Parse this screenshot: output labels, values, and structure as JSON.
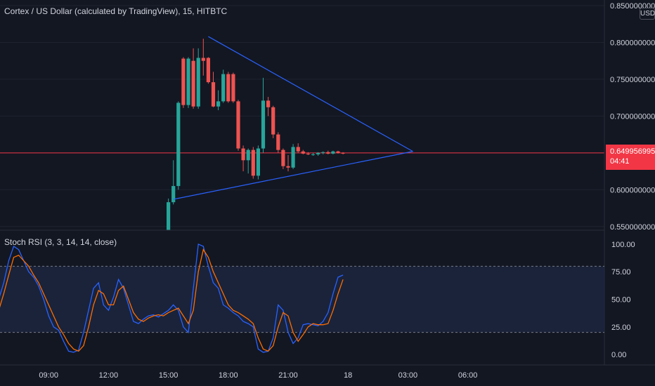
{
  "header": {
    "symbol_title": "Cortex / US Dollar (calculated by TradingView), 15, HITBTC",
    "currency_badge": "USD"
  },
  "price_tag": {
    "price": "0.649956995",
    "countdown": "04:41"
  },
  "colors": {
    "background": "#131722",
    "bull": "#26a69a",
    "bear": "#ef5350",
    "trendline": "#2962ff",
    "k_line": "#2962ff",
    "d_line": "#ff6d00",
    "price_line": "#f23645",
    "band_fill": "#1e2a44"
  },
  "chart_data": [
    {
      "type": "candlestick",
      "title": "Cortex / US Dollar (calculated by TradingView), 15, HITBTC",
      "ylim": [
        0.545,
        0.85
      ],
      "y_ticks": [
        "0.850000000",
        "0.800000000",
        "0.750000000",
        "0.700000000",
        "0.650000000",
        "0.600000000",
        "0.550000000"
      ],
      "y_tick_values": [
        0.85,
        0.8,
        0.75,
        0.7,
        0.65,
        0.6,
        0.55
      ],
      "x_ticks": [
        "06:00",
        "09:00",
        "12:00",
        "15:00",
        "18:00",
        "21:00",
        "18",
        "03:00",
        "06:00"
      ],
      "x_tick_index": [
        -120,
        -108,
        -96,
        -84,
        -72,
        -60,
        -48,
        -36,
        -24
      ],
      "candles": [
        {
          "i": -84,
          "o": 0.545,
          "h": 0.588,
          "l": 0.545,
          "c": 0.583
        },
        {
          "i": -83,
          "o": 0.583,
          "h": 0.64,
          "l": 0.58,
          "c": 0.605
        },
        {
          "i": -82,
          "o": 0.605,
          "h": 0.72,
          "l": 0.6,
          "c": 0.718
        },
        {
          "i": -81,
          "o": 0.778,
          "h": 0.78,
          "l": 0.711,
          "c": 0.715
        },
        {
          "i": -80,
          "o": 0.715,
          "h": 0.78,
          "l": 0.711,
          "c": 0.778
        },
        {
          "i": -79,
          "o": 0.775,
          "h": 0.792,
          "l": 0.71,
          "c": 0.713
        },
        {
          "i": -78,
          "o": 0.713,
          "h": 0.792,
          "l": 0.71,
          "c": 0.779
        },
        {
          "i": -77,
          "o": 0.779,
          "h": 0.805,
          "l": 0.755,
          "c": 0.775
        },
        {
          "i": -76,
          "o": 0.779,
          "h": 0.78,
          "l": 0.744,
          "c": 0.746
        },
        {
          "i": -75,
          "o": 0.746,
          "h": 0.76,
          "l": 0.712,
          "c": 0.713
        },
        {
          "i": -74,
          "o": 0.713,
          "h": 0.735,
          "l": 0.708,
          "c": 0.72
        },
        {
          "i": -73,
          "o": 0.72,
          "h": 0.763,
          "l": 0.718,
          "c": 0.757
        },
        {
          "i": -72,
          "o": 0.757,
          "h": 0.76,
          "l": 0.718,
          "c": 0.72
        },
        {
          "i": -71,
          "o": 0.757,
          "h": 0.759,
          "l": 0.718,
          "c": 0.72
        },
        {
          "i": -70,
          "o": 0.72,
          "h": 0.722,
          "l": 0.653,
          "c": 0.656
        },
        {
          "i": -69,
          "o": 0.656,
          "h": 0.66,
          "l": 0.625,
          "c": 0.64
        },
        {
          "i": -68,
          "o": 0.64,
          "h": 0.656,
          "l": 0.622,
          "c": 0.654
        },
        {
          "i": -67,
          "o": 0.654,
          "h": 0.658,
          "l": 0.615,
          "c": 0.619
        },
        {
          "i": -66,
          "o": 0.619,
          "h": 0.66,
          "l": 0.614,
          "c": 0.656
        },
        {
          "i": -65,
          "o": 0.656,
          "h": 0.752,
          "l": 0.65,
          "c": 0.721
        },
        {
          "i": -64,
          "o": 0.721,
          "h": 0.726,
          "l": 0.7,
          "c": 0.712
        },
        {
          "i": -63,
          "o": 0.712,
          "h": 0.714,
          "l": 0.67,
          "c": 0.675
        },
        {
          "i": -62,
          "o": 0.675,
          "h": 0.678,
          "l": 0.65,
          "c": 0.654
        },
        {
          "i": -61,
          "o": 0.654,
          "h": 0.656,
          "l": 0.628,
          "c": 0.632
        },
        {
          "i": -60,
          "o": 0.632,
          "h": 0.647,
          "l": 0.625,
          "c": 0.63
        },
        {
          "i": -59,
          "o": 0.63,
          "h": 0.662,
          "l": 0.628,
          "c": 0.658
        },
        {
          "i": -58,
          "o": 0.658,
          "h": 0.663,
          "l": 0.65,
          "c": 0.652
        },
        {
          "i": -57,
          "o": 0.652,
          "h": 0.654,
          "l": 0.648,
          "c": 0.649
        },
        {
          "i": -56,
          "o": 0.649,
          "h": 0.651,
          "l": 0.647,
          "c": 0.648
        },
        {
          "i": -55,
          "o": 0.648,
          "h": 0.65,
          "l": 0.646,
          "c": 0.648
        },
        {
          "i": -54,
          "o": 0.648,
          "h": 0.651,
          "l": 0.646,
          "c": 0.65
        },
        {
          "i": -53,
          "o": 0.65,
          "h": 0.652,
          "l": 0.648,
          "c": 0.651
        },
        {
          "i": -52,
          "o": 0.651,
          "h": 0.653,
          "l": 0.648,
          "c": 0.649
        },
        {
          "i": -51,
          "o": 0.649,
          "h": 0.653,
          "l": 0.648,
          "c": 0.652
        },
        {
          "i": -50,
          "o": 0.652,
          "h": 0.653,
          "l": 0.649,
          "c": 0.65
        },
        {
          "i": -49,
          "o": 0.65,
          "h": 0.651,
          "l": 0.648,
          "c": 0.649
        }
      ],
      "current_price": 0.649956995,
      "trendlines": [
        {
          "from": {
            "i": -76,
            "y": 0.808
          },
          "to": {
            "i": -35,
            "y": 0.652
          }
        },
        {
          "from": {
            "i": -83,
            "y": 0.587
          },
          "to": {
            "i": -35,
            "y": 0.652
          }
        }
      ]
    },
    {
      "type": "line",
      "title": "Stoch RSI (3, 3, 14, 14, close)",
      "ylim": [
        -5,
        105
      ],
      "y_ticks": [
        "100.00",
        "75.00",
        "50.00",
        "25.00",
        "0.00"
      ],
      "y_tick_values": [
        100,
        75,
        50,
        25,
        0
      ],
      "bands": [
        80,
        20
      ],
      "series": [
        {
          "values": [
            52,
            55,
            48,
            52,
            50,
            20,
            30,
            42,
            35,
            50,
            65,
            85,
            98,
            95,
            85,
            75,
            70,
            62,
            50,
            35,
            25,
            22,
            12,
            3,
            2,
            4,
            20,
            40,
            60,
            65,
            45,
            40,
            52,
            68,
            60,
            45,
            30,
            28,
            32,
            35,
            36,
            34,
            37,
            40,
            45,
            40,
            25,
            20,
            60,
            100,
            98,
            80,
            65,
            60,
            45,
            42,
            38,
            35,
            30,
            28,
            25,
            5,
            2,
            3,
            15,
            45,
            40,
            20,
            10,
            15,
            27,
            28,
            27,
            26,
            30,
            38,
            55,
            70,
            72
          ]
        },
        {
          "values": [
            48,
            49,
            50,
            51,
            50,
            45,
            38,
            36,
            37,
            40,
            55,
            72,
            88,
            90,
            85,
            80,
            72,
            65,
            55,
            45,
            35,
            25,
            18,
            10,
            5,
            3,
            8,
            25,
            45,
            58,
            55,
            45,
            45,
            58,
            62,
            50,
            38,
            32,
            30,
            33,
            35,
            36,
            35,
            38,
            40,
            42,
            35,
            28,
            40,
            75,
            95,
            88,
            75,
            65,
            55,
            45,
            40,
            38,
            35,
            32,
            28,
            15,
            5,
            3,
            8,
            25,
            38,
            35,
            20,
            12,
            18,
            25,
            28,
            27,
            27,
            28,
            40,
            55,
            68
          ]
        }
      ]
    }
  ]
}
